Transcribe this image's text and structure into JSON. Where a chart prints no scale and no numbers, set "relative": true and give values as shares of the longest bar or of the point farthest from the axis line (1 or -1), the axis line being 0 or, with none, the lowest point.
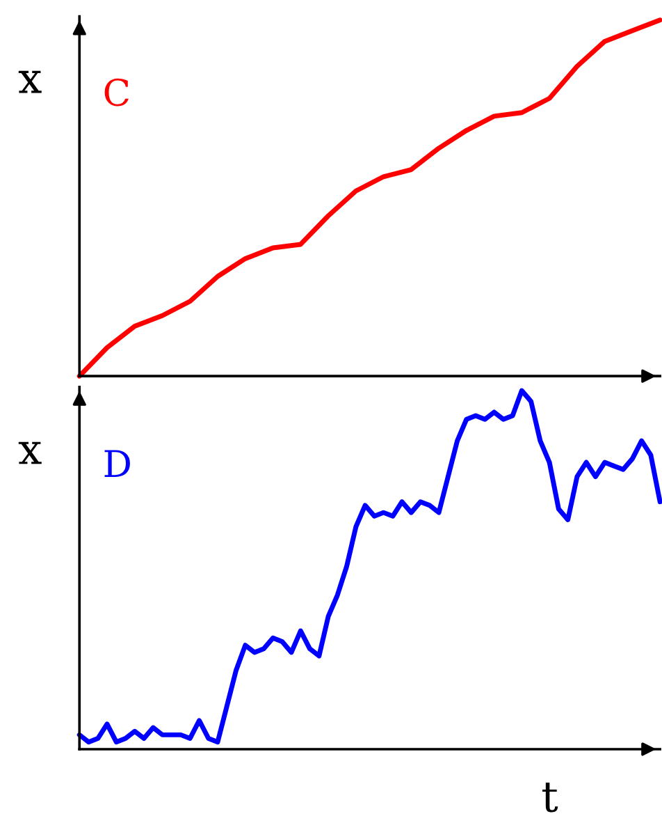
{
  "chart_data": [
    {
      "type": "line",
      "relative": true,
      "ylabel": "x",
      "categories": [
        null,
        null,
        null,
        null,
        null,
        null,
        null,
        null,
        null,
        null,
        null,
        null,
        null,
        null,
        null,
        null,
        null,
        null,
        null,
        null,
        null,
        null
      ],
      "series": [
        {
          "name": "C",
          "color": "#ff0000",
          "values": [
            0,
            0.08,
            0.14,
            0.17,
            0.21,
            0.28,
            0.33,
            0.36,
            0.37,
            0.45,
            0.52,
            0.56,
            0.58,
            0.64,
            0.69,
            0.73,
            0.74,
            0.78,
            0.87,
            0.94,
            0.97,
            1
          ]
        }
      ],
      "legend": false
    },
    {
      "type": "line",
      "relative": true,
      "ylabel": "x",
      "xlabel": "t",
      "categories": [
        null,
        null,
        null,
        null,
        null,
        null,
        null,
        null,
        null,
        null,
        null,
        null,
        null,
        null,
        null,
        null,
        null,
        null,
        null,
        null,
        null,
        null,
        null,
        null,
        null,
        null,
        null,
        null,
        null,
        null,
        null,
        null,
        null,
        null,
        null,
        null,
        null,
        null,
        null,
        null,
        null,
        null,
        null,
        null,
        null,
        null,
        null,
        null,
        null,
        null,
        null,
        null,
        null,
        null,
        null,
        null,
        null,
        null,
        null,
        null,
        null,
        null,
        null,
        null
      ],
      "series": [
        {
          "name": "D",
          "color": "#0000ff",
          "values": [
            0.04,
            0.02,
            0.03,
            0.07,
            0.02,
            0.03,
            0.05,
            0.03,
            0.06,
            0.04,
            0.04,
            0.04,
            0.03,
            0.08,
            0.03,
            0.02,
            0.12,
            0.22,
            0.29,
            0.27,
            0.28,
            0.31,
            0.3,
            0.27,
            0.33,
            0.28,
            0.26,
            0.37,
            0.43,
            0.51,
            0.62,
            0.68,
            0.65,
            0.66,
            0.65,
            0.69,
            0.66,
            0.69,
            0.68,
            0.66,
            0.76,
            0.86,
            0.92,
            0.93,
            0.92,
            0.94,
            0.92,
            0.93,
            1,
            0.97,
            0.86,
            0.8,
            0.67,
            0.64,
            0.76,
            0.8,
            0.76,
            0.8,
            0.79,
            0.78,
            0.81,
            0.86,
            0.82,
            0.69
          ]
        }
      ],
      "legend": false
    }
  ]
}
